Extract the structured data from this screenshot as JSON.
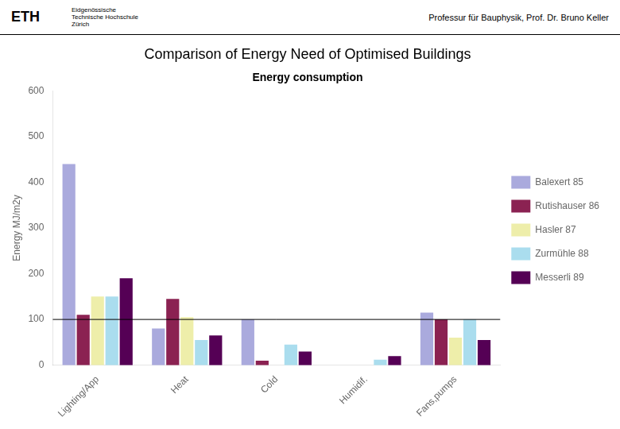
{
  "chart_data": {
    "type": "bar",
    "title": "Comparison of Energy Need of Optimised Buildings",
    "subtitle": "Energy consumption",
    "ylabel": "Energy MJ/m2y",
    "annotations": [
      {
        "text": "ETH"
      },
      {
        "text": "Eidgenössische\nTechnische Hochschule\nZürich"
      },
      {
        "text": "Professur für Bauphysik, Prof. Dr. Bruno Keller"
      }
    ],
    "categories": [
      "Lighting/App",
      "Heat",
      "Cold",
      "Humidif.",
      "Fans,pumps"
    ],
    "series": [
      {
        "name": "Balexert 85",
        "color": "#aaaadd",
        "values": [
          440,
          80,
          100,
          0,
          115
        ]
      },
      {
        "name": "Rutishauser 86",
        "color": "#8b2252",
        "values": [
          110,
          145,
          10,
          0,
          100
        ]
      },
      {
        "name": "Hasler 87",
        "color": "#eeeeaa",
        "values": [
          150,
          105,
          0,
          0,
          60
        ]
      },
      {
        "name": "Zurmühle 88",
        "color": "#aaddee",
        "values": [
          150,
          55,
          45,
          12,
          100
        ]
      },
      {
        "name": "Messerli 89",
        "color": "#550055",
        "values": [
          190,
          65,
          30,
          20,
          55
        ]
      }
    ],
    "hline": 100,
    "ylim": [
      0,
      600
    ],
    "yticks": [
      0,
      100,
      200,
      300,
      400,
      500,
      600
    ],
    "grid": false,
    "legend": "right"
  }
}
